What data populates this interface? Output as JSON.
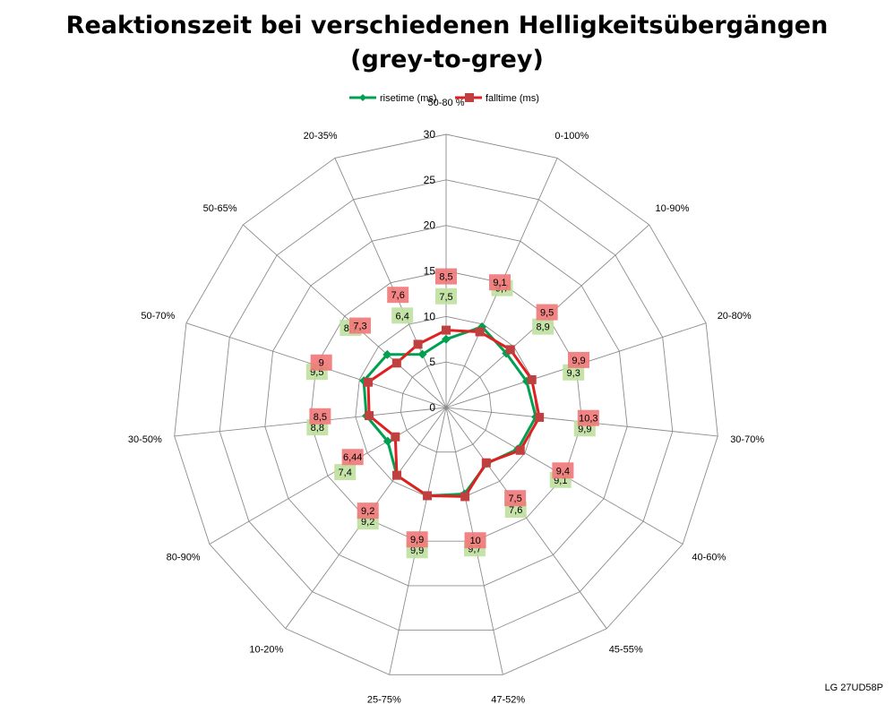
{
  "chart_data": {
    "type": "radar",
    "title_line1": "Reaktionszeit bei verschiedenen Helligkeitsübergängen",
    "title_line2": "(grey-to-grey)",
    "categories": [
      "50-80 %",
      "0-100%",
      "10-90%",
      "20-80%",
      "30-70%",
      "40-60%",
      "45-55%",
      "47-52%",
      "25-75%",
      "10-20%",
      "80-90%",
      "30-50%",
      "50-70%",
      "50-65%",
      "20-35%"
    ],
    "ylim": [
      0,
      30
    ],
    "ticks": [
      "0",
      "5",
      "10",
      "15",
      "20",
      "25",
      "30"
    ],
    "series": [
      {
        "name": "risetime (ms)",
        "color": "#00a050",
        "label_bg": "#bfe0a0",
        "values": [
          7.5,
          9.7,
          8.9,
          9.3,
          9.9,
          9.1,
          7.6,
          9.7,
          9.9,
          9.2,
          7.4,
          8.8,
          9.5,
          8.7,
          6.4
        ],
        "labels": [
          "7,5",
          "9,7",
          "8,9",
          "9,3",
          "9,9",
          "9,1",
          "7,6",
          "9,7",
          "9,9",
          "9,2",
          "7,4",
          "8,8",
          "9,5",
          "8,7",
          "6,4"
        ]
      },
      {
        "name": "falltime (ms)",
        "color": "#e02020",
        "label_bg": "#f07878",
        "values": [
          8.5,
          9.1,
          9.5,
          9.9,
          10.3,
          9.4,
          7.5,
          10.0,
          9.9,
          9.2,
          6.44,
          8.5,
          9.0,
          7.3,
          7.6
        ],
        "labels": [
          "8,5",
          "9,1",
          "9,5",
          "9,9",
          "10,3",
          "9,4",
          "7,5",
          "10",
          "9,9",
          "9,2",
          "6,44",
          "8,5",
          "9",
          "7,3",
          "7,6"
        ]
      }
    ],
    "legend_position": "top"
  },
  "watermark": "LG 27UD58P"
}
